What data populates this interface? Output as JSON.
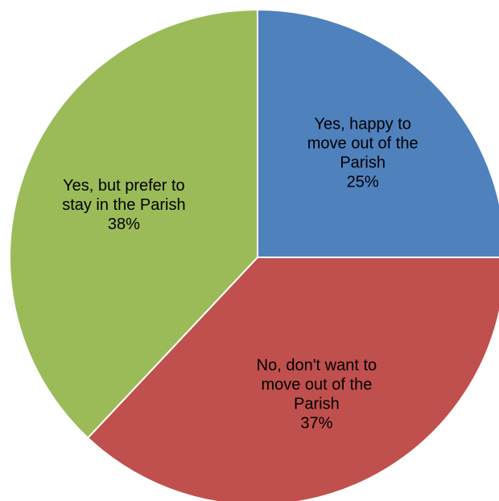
{
  "chart_data": {
    "type": "pie",
    "slices": [
      {
        "label_lines": [
          "Yes, happy to",
          "move out of the",
          "Parish"
        ],
        "value": 25,
        "value_label": "25%",
        "color": "#4f81bd"
      },
      {
        "label_lines": [
          "No, don't want to",
          "move out of the",
          "Parish"
        ],
        "value": 37,
        "value_label": "37%",
        "color": "#c0504d"
      },
      {
        "label_lines": [
          "Yes, but prefer to",
          "stay in the Parish"
        ],
        "value": 38,
        "value_label": "38%",
        "color": "#9bbb59"
      }
    ],
    "start": "12 o'clock",
    "direction": "clockwise",
    "legend": "none",
    "labels": "inside slices"
  }
}
